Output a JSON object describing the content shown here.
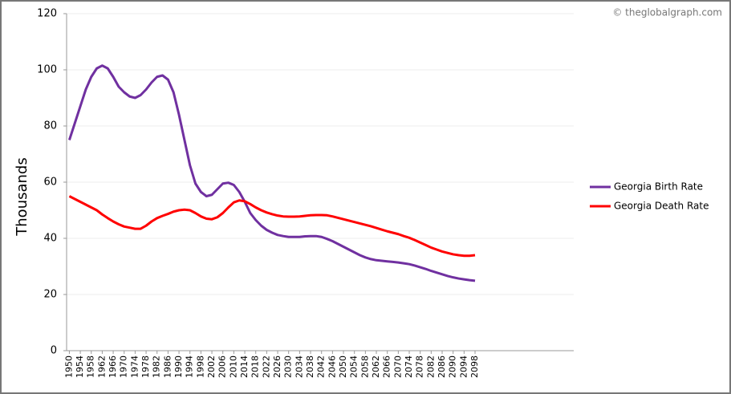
{
  "chart_data": {
    "type": "line",
    "watermark": "© theglobalgraph.com",
    "ylabel": "Thousands",
    "x": [
      1950,
      1952,
      1954,
      1956,
      1958,
      1960,
      1962,
      1964,
      1966,
      1968,
      1970,
      1972,
      1974,
      1976,
      1978,
      1980,
      1982,
      1984,
      1986,
      1988,
      1990,
      1992,
      1994,
      1996,
      1998,
      2000,
      2002,
      2004,
      2006,
      2008,
      2010,
      2012,
      2014,
      2016,
      2018,
      2020,
      2022,
      2024,
      2026,
      2028,
      2030,
      2032,
      2034,
      2036,
      2038,
      2040,
      2042,
      2044,
      2046,
      2048,
      2050,
      2052,
      2054,
      2056,
      2058,
      2060,
      2062,
      2064,
      2066,
      2068,
      2070,
      2072,
      2074,
      2076,
      2078,
      2080,
      2082,
      2084,
      2086,
      2088,
      2090,
      2092,
      2094,
      2096,
      2098
    ],
    "series": [
      {
        "name": "Georgia Birth Rate",
        "color": "#7030a0",
        "values": [
          75,
          81,
          87,
          93,
          97.5,
          100.5,
          101.5,
          100.5,
          97.5,
          94,
          92,
          90.5,
          90,
          91,
          93,
          95.5,
          97.5,
          98,
          96.5,
          92,
          84,
          75,
          66,
          59.5,
          56.5,
          55,
          55.5,
          57.5,
          59.5,
          59.8,
          59,
          56.5,
          53,
          49,
          46.5,
          44.5,
          43,
          42,
          41.2,
          40.8,
          40.5,
          40.5,
          40.5,
          40.7,
          40.8,
          40.8,
          40.5,
          39.8,
          39,
          38,
          37,
          36,
          35,
          34,
          33.2,
          32.6,
          32.2,
          32,
          31.8,
          31.6,
          31.4,
          31.1,
          30.8,
          30.3,
          29.7,
          29.1,
          28.4,
          27.8,
          27.2,
          26.6,
          26.1,
          25.7,
          25.4,
          25.1,
          24.9
        ]
      },
      {
        "name": "Georgia Death Rate",
        "color": "#ff0000",
        "values": [
          55,
          54,
          53,
          52,
          51,
          50,
          48.5,
          47.2,
          46,
          45,
          44.2,
          43.8,
          43.4,
          43.4,
          44.5,
          46,
          47.2,
          48,
          48.7,
          49.5,
          50,
          50.2,
          50,
          49,
          47.8,
          47,
          46.8,
          47.5,
          49,
          51,
          52.8,
          53.5,
          53.2,
          52.2,
          51,
          50,
          49.2,
          48.6,
          48.1,
          47.8,
          47.7,
          47.7,
          47.8,
          48,
          48.2,
          48.3,
          48.3,
          48.2,
          47.8,
          47.3,
          46.8,
          46.3,
          45.8,
          45.3,
          44.8,
          44.3,
          43.7,
          43.1,
          42.5,
          42,
          41.5,
          40.8,
          40.2,
          39.4,
          38.5,
          37.6,
          36.7,
          36,
          35.3,
          34.8,
          34.3,
          34,
          33.8,
          33.8,
          34
        ]
      }
    ],
    "xlim": [
      1949,
      2134
    ],
    "xticks": [
      1950,
      1954,
      1958,
      1962,
      1966,
      1970,
      1974,
      1978,
      1982,
      1986,
      1990,
      1994,
      1998,
      2002,
      2006,
      2010,
      2014,
      2018,
      2022,
      2026,
      2030,
      2034,
      2038,
      2042,
      2046,
      2050,
      2054,
      2058,
      2062,
      2066,
      2070,
      2074,
      2078,
      2082,
      2086,
      2090,
      2094,
      2098
    ],
    "ylim": [
      0,
      120
    ],
    "yticks": [
      0,
      20,
      40,
      60,
      80,
      100,
      120
    ],
    "grid": true,
    "legend": "right"
  }
}
